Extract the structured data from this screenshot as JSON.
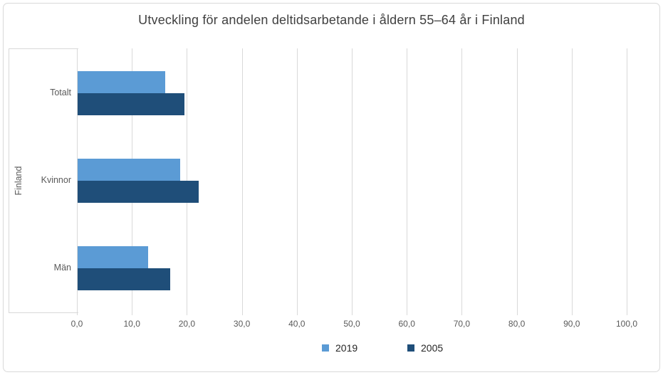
{
  "window": {
    "background": "#ffffff",
    "border_color": "#d9d9d9"
  },
  "chart_data": {
    "type": "bar",
    "orientation": "horizontal",
    "title": "Utveckling för andelen deltidsarbetande i åldern 55–64 år i Finland",
    "group_label": "Finland",
    "categories": [
      "Totalt",
      "Kvinnor",
      "Män"
    ],
    "series": [
      {
        "name": "2019",
        "color": "#5b9bd5",
        "values": [
          15.9,
          18.6,
          12.8
        ]
      },
      {
        "name": "2005",
        "color": "#1f4e79",
        "values": [
          19.4,
          22.0,
          16.8
        ]
      }
    ],
    "x_axis": {
      "min": 0,
      "max": 100,
      "tick_step": 10,
      "tick_labels": [
        "0,0",
        "10,0",
        "20,0",
        "30,0",
        "40,0",
        "50,0",
        "60,0",
        "70,0",
        "80,0",
        "90,0",
        "100,0"
      ]
    },
    "grid": true,
    "legend": {
      "position": "bottom",
      "entries": [
        "2019",
        "2005"
      ]
    }
  },
  "colors": {
    "title_text": "#404040",
    "axis_text": "#595959",
    "legend_text": "#262626",
    "gridline": "#d9d9d9"
  }
}
